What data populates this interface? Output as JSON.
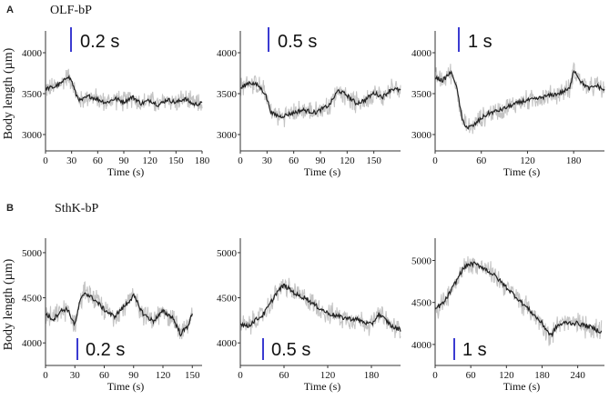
{
  "figure": {
    "rows": [
      {
        "letter": "A",
        "title": "OLF-bP",
        "ylabel": "Body length (µm)"
      },
      {
        "letter": "B",
        "title": "SthK-bP",
        "ylabel": "Body length (µm)"
      }
    ]
  },
  "colors": {
    "mean": "#222222",
    "spread": "#c4c4c4",
    "pulse_marker": "#3b3bd1",
    "axis": "#333333"
  },
  "chart_data": [
    {
      "type": "line",
      "row": 0,
      "col": 0,
      "pulse_label": "0.2 s",
      "xlabel": "Time (s)",
      "xlim": [
        0,
        180
      ],
      "ylim": [
        2800,
        4200
      ],
      "xticks": [
        0,
        30,
        60,
        90,
        120,
        150,
        180
      ],
      "yticks": [
        3000,
        3500,
        4000
      ],
      "pulse_time": 30,
      "series": [
        {
          "x": [
            0,
            10,
            20,
            25,
            30,
            35,
            40,
            50,
            60,
            70,
            80,
            90,
            100,
            110,
            120,
            130,
            140,
            150,
            160,
            170,
            180
          ],
          "values": [
            3560,
            3580,
            3640,
            3720,
            3660,
            3490,
            3410,
            3470,
            3430,
            3390,
            3440,
            3400,
            3460,
            3380,
            3420,
            3360,
            3430,
            3390,
            3440,
            3370,
            3380
          ]
        }
      ]
    },
    {
      "type": "line",
      "row": 0,
      "col": 1,
      "pulse_label": "0.5 s",
      "xlabel": "Time (s)",
      "xlim": [
        0,
        180
      ],
      "ylim": [
        2800,
        4200
      ],
      "xticks": [
        0,
        30,
        60,
        90,
        120,
        150
      ],
      "yticks": [
        3000,
        3500,
        4000
      ],
      "pulse_time": 30,
      "series": [
        {
          "x": [
            0,
            10,
            20,
            28,
            35,
            45,
            55,
            70,
            85,
            100,
            110,
            120,
            130,
            140,
            150,
            160,
            170,
            180
          ],
          "values": [
            3560,
            3640,
            3600,
            3500,
            3260,
            3220,
            3250,
            3300,
            3270,
            3360,
            3540,
            3480,
            3380,
            3420,
            3510,
            3460,
            3560,
            3540
          ]
        }
      ]
    },
    {
      "type": "line",
      "row": 0,
      "col": 2,
      "pulse_label": "1 s",
      "xlabel": "Time (s)",
      "xlim": [
        0,
        220
      ],
      "ylim": [
        2800,
        4200
      ],
      "xticks": [
        0,
        60,
        120,
        180
      ],
      "yticks": [
        3000,
        3500,
        4000
      ],
      "pulse_time": 30,
      "series": [
        {
          "x": [
            0,
            10,
            20,
            25,
            30,
            35,
            42,
            50,
            60,
            70,
            85,
            100,
            115,
            130,
            145,
            160,
            175,
            180,
            190,
            200,
            210,
            220
          ],
          "values": [
            3700,
            3660,
            3760,
            3680,
            3480,
            3180,
            3080,
            3110,
            3200,
            3260,
            3300,
            3360,
            3410,
            3430,
            3470,
            3500,
            3560,
            3800,
            3640,
            3560,
            3600,
            3540
          ]
        }
      ]
    },
    {
      "type": "line",
      "row": 1,
      "col": 0,
      "pulse_label": "0.2 s",
      "xlabel": "Time (s)",
      "xlim": [
        0,
        160
      ],
      "ylim": [
        3750,
        5100
      ],
      "xticks": [
        0,
        30,
        60,
        90,
        120,
        150
      ],
      "yticks": [
        4000,
        4500,
        5000
      ],
      "pulse_time": 30,
      "series": [
        {
          "x": [
            0,
            8,
            15,
            22,
            30,
            35,
            40,
            50,
            60,
            70,
            80,
            90,
            95,
            100,
            110,
            120,
            130,
            138,
            145,
            150
          ],
          "values": [
            4320,
            4260,
            4350,
            4380,
            4200,
            4450,
            4560,
            4480,
            4370,
            4290,
            4400,
            4520,
            4420,
            4320,
            4240,
            4350,
            4280,
            4100,
            4180,
            4320
          ]
        }
      ]
    },
    {
      "type": "line",
      "row": 1,
      "col": 1,
      "pulse_label": "0.5 s",
      "xlabel": "Time (s)",
      "xlim": [
        0,
        220
      ],
      "ylim": [
        3750,
        5100
      ],
      "xticks": [
        0,
        60,
        120,
        180
      ],
      "yticks": [
        4000,
        4500,
        5000
      ],
      "pulse_time": 25,
      "series": [
        {
          "x": [
            0,
            10,
            20,
            30,
            40,
            50,
            60,
            70,
            80,
            90,
            100,
            110,
            120,
            140,
            160,
            180,
            190,
            200,
            210,
            220
          ],
          "values": [
            4220,
            4180,
            4250,
            4300,
            4420,
            4560,
            4640,
            4580,
            4520,
            4500,
            4430,
            4380,
            4330,
            4280,
            4260,
            4200,
            4320,
            4250,
            4170,
            4150
          ]
        }
      ]
    },
    {
      "type": "line",
      "row": 1,
      "col": 2,
      "pulse_label": "1 s",
      "xlabel": "Time (s)",
      "xlim": [
        0,
        285
      ],
      "ylim": [
        3750,
        5200
      ],
      "xticks": [
        0,
        60,
        120,
        180,
        240
      ],
      "yticks": [
        4000,
        4500,
        5000
      ],
      "pulse_time": 30,
      "series": [
        {
          "x": [
            0,
            15,
            30,
            45,
            55,
            65,
            80,
            100,
            120,
            140,
            160,
            180,
            195,
            205,
            220,
            240,
            260,
            280
          ],
          "values": [
            4420,
            4500,
            4680,
            4880,
            4950,
            4960,
            4920,
            4820,
            4680,
            4540,
            4400,
            4250,
            4100,
            4220,
            4260,
            4250,
            4210,
            4150
          ]
        }
      ]
    }
  ]
}
